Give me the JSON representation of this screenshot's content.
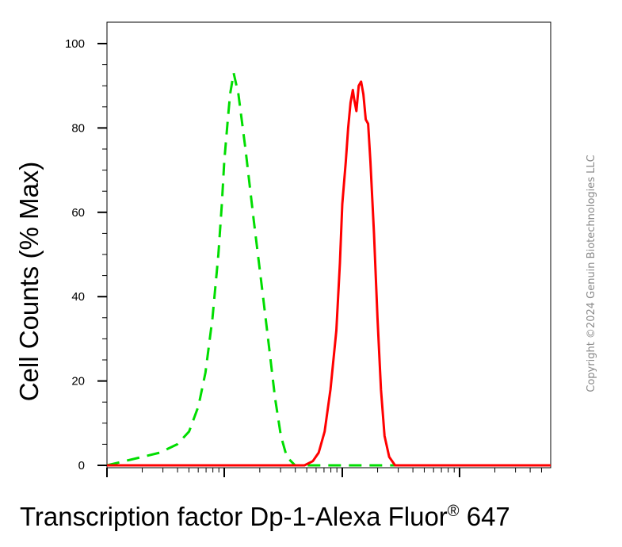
{
  "chart_data": {
    "type": "line",
    "title": "",
    "xlabel": "Transcription factor Dp-1-Alexa Fluor",
    "xlabel_sup": "®",
    "xlabel_suffix": " 647",
    "ylabel": "Cell Counts (% Max)",
    "ylim": [
      0,
      105
    ],
    "y_ticks": [
      "0",
      "20",
      "40",
      "60",
      "80",
      "100"
    ],
    "x_scale": "log",
    "x_tick_labels": [],
    "x_decade_positions": [
      0.0,
      1.0,
      2.0,
      3.0
    ],
    "grid": false,
    "legend": "none",
    "series": [
      {
        "color": "#00dd00",
        "style": "dashed",
        "points": [
          [
            0.0,
            0
          ],
          [
            0.15,
            1
          ],
          [
            0.3,
            2
          ],
          [
            0.45,
            3
          ],
          [
            0.6,
            5
          ],
          [
            0.7,
            8
          ],
          [
            0.78,
            14
          ],
          [
            0.84,
            22
          ],
          [
            0.9,
            35
          ],
          [
            0.95,
            50
          ],
          [
            0.98,
            62
          ],
          [
            1.0,
            72
          ],
          [
            1.03,
            82
          ],
          [
            1.05,
            88
          ],
          [
            1.08,
            93
          ],
          [
            1.12,
            88
          ],
          [
            1.18,
            75
          ],
          [
            1.25,
            58
          ],
          [
            1.32,
            42
          ],
          [
            1.38,
            28
          ],
          [
            1.43,
            16
          ],
          [
            1.48,
            7
          ],
          [
            1.53,
            2
          ],
          [
            1.6,
            0
          ],
          [
            3.8,
            0
          ]
        ]
      },
      {
        "color": "#ff0000",
        "style": "solid",
        "points": [
          [
            0.0,
            0
          ],
          [
            1.6,
            0
          ],
          [
            1.68,
            0
          ],
          [
            1.75,
            1
          ],
          [
            1.8,
            3
          ],
          [
            1.85,
            8
          ],
          [
            1.9,
            18
          ],
          [
            1.95,
            32
          ],
          [
            1.98,
            48
          ],
          [
            2.0,
            62
          ],
          [
            2.03,
            72
          ],
          [
            2.05,
            80
          ],
          [
            2.07,
            86
          ],
          [
            2.09,
            89
          ],
          [
            2.1,
            87
          ],
          [
            2.12,
            84
          ],
          [
            2.14,
            90
          ],
          [
            2.16,
            91
          ],
          [
            2.18,
            88
          ],
          [
            2.2,
            82
          ],
          [
            2.22,
            81
          ],
          [
            2.24,
            72
          ],
          [
            2.27,
            55
          ],
          [
            2.3,
            35
          ],
          [
            2.33,
            18
          ],
          [
            2.36,
            7
          ],
          [
            2.4,
            2
          ],
          [
            2.45,
            0
          ],
          [
            2.5,
            0
          ],
          [
            3.8,
            0
          ]
        ]
      }
    ]
  },
  "watermark": "Copyright ©2024 Genuin Biotechnologies LLC"
}
